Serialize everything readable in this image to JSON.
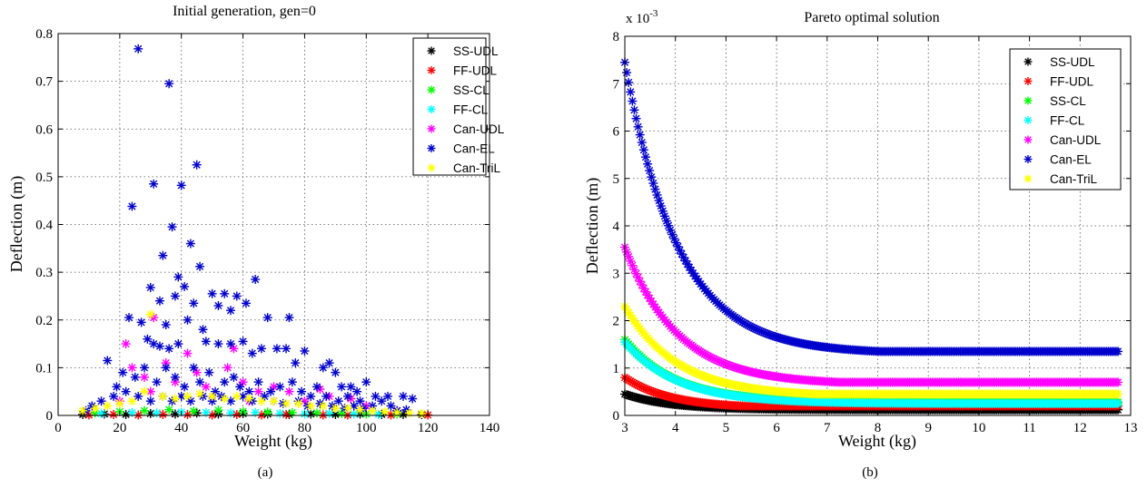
{
  "chart_data": [
    {
      "type": "scatter",
      "title": "Initial generation, gen=0",
      "xlabel": "Weight (kg)",
      "ylabel": "Deflection (m)",
      "caption": "(a)",
      "xlim": [
        0,
        140
      ],
      "ylim": [
        0,
        0.8
      ],
      "xticks": [
        0,
        20,
        40,
        60,
        80,
        100,
        120,
        140
      ],
      "yticks": [
        0,
        0.1,
        0.2,
        0.3,
        0.4,
        0.5,
        0.6,
        0.7,
        0.8
      ],
      "xtick_labels": [
        "0",
        "20",
        "40",
        "60",
        "80",
        "100",
        "120",
        "140"
      ],
      "ytick_labels": [
        "0",
        "0.1",
        "0.2",
        "0.3",
        "0.4",
        "0.5",
        "0.6",
        "0.7",
        "0.8"
      ],
      "grid": true,
      "legend_position": "top-right",
      "marker": "asterisk",
      "series": [
        {
          "name": "SS-UDL",
          "color": "#000000",
          "points": [
            [
              8,
              0.002
            ],
            [
              15,
              0.003
            ],
            [
              22,
              0.002
            ],
            [
              30,
              0.004
            ],
            [
              38,
              0.003
            ],
            [
              45,
              0.005
            ],
            [
              52,
              0.003
            ],
            [
              60,
              0.004
            ],
            [
              68,
              0.003
            ],
            [
              75,
              0.002
            ],
            [
              82,
              0.003
            ],
            [
              90,
              0.002
            ],
            [
              98,
              0.003
            ],
            [
              105,
              0.002
            ],
            [
              112,
              0.002
            ],
            [
              118,
              0.002
            ]
          ]
        },
        {
          "name": "FF-UDL",
          "color": "#ff0000",
          "points": [
            [
              10,
              0.001
            ],
            [
              18,
              0.002
            ],
            [
              26,
              0.001
            ],
            [
              34,
              0.002
            ],
            [
              42,
              0.002
            ],
            [
              50,
              0.001
            ],
            [
              58,
              0.002
            ],
            [
              66,
              0.001
            ],
            [
              74,
              0.002
            ],
            [
              86,
              0.001
            ],
            [
              94,
              0.001
            ],
            [
              108,
              0.001
            ],
            [
              120,
              0.001
            ]
          ]
        },
        {
          "name": "SS-CL",
          "color": "#00ff00",
          "points": [
            [
              12,
              0.005
            ],
            [
              20,
              0.008
            ],
            [
              28,
              0.01
            ],
            [
              36,
              0.012
            ],
            [
              44,
              0.009
            ],
            [
              52,
              0.011
            ],
            [
              60,
              0.008
            ],
            [
              68,
              0.007
            ],
            [
              76,
              0.006
            ],
            [
              84,
              0.005
            ],
            [
              92,
              0.004
            ],
            [
              100,
              0.003
            ],
            [
              110,
              0.003
            ]
          ]
        },
        {
          "name": "FF-CL",
          "color": "#00ffff",
          "points": [
            [
              14,
              0.004
            ],
            [
              24,
              0.006
            ],
            [
              32,
              0.005
            ],
            [
              40,
              0.007
            ],
            [
              48,
              0.006
            ],
            [
              56,
              0.005
            ],
            [
              64,
              0.006
            ],
            [
              72,
              0.004
            ],
            [
              80,
              0.003
            ],
            [
              88,
              0.004
            ],
            [
              96,
              0.003
            ],
            [
              104,
              0.002
            ]
          ]
        },
        {
          "name": "Can-UDL",
          "color": "#ff00ff",
          "points": [
            [
              22,
              0.15
            ],
            [
              24,
              0.1
            ],
            [
              28,
              0.08
            ],
            [
              31,
              0.205
            ],
            [
              35,
              0.11
            ],
            [
              42,
              0.13
            ],
            [
              45,
              0.09
            ],
            [
              48,
              0.06
            ],
            [
              55,
              0.1
            ],
            [
              57,
              0.14
            ],
            [
              60,
              0.07
            ],
            [
              65,
              0.05
            ],
            [
              70,
              0.06
            ],
            [
              75,
              0.05
            ],
            [
              85,
              0.055
            ],
            [
              88,
              0.04
            ],
            [
              95,
              0.035
            ],
            [
              100,
              0.02
            ],
            [
              30,
              0.05
            ],
            [
              50,
              0.04
            ],
            [
              38,
              0.07
            ],
            [
              62,
              0.03
            ],
            [
              80,
              0.03
            ],
            [
              20,
              0.03
            ],
            [
              110,
              0.01
            ]
          ]
        },
        {
          "name": "Can-EL",
          "color": "#0000cc",
          "points": [
            [
              26,
              0.768
            ],
            [
              36,
              0.695
            ],
            [
              45,
              0.525
            ],
            [
              31,
              0.485
            ],
            [
              40,
              0.482
            ],
            [
              24,
              0.438
            ],
            [
              37,
              0.395
            ],
            [
              43,
              0.36
            ],
            [
              34,
              0.335
            ],
            [
              39,
              0.29
            ],
            [
              46,
              0.312
            ],
            [
              30,
              0.268
            ],
            [
              41,
              0.27
            ],
            [
              44,
              0.235
            ],
            [
              38,
              0.25
            ],
            [
              33,
              0.24
            ],
            [
              50,
              0.255
            ],
            [
              54,
              0.255
            ],
            [
              58,
              0.25
            ],
            [
              52,
              0.23
            ],
            [
              56,
              0.22
            ],
            [
              61,
              0.235
            ],
            [
              64,
              0.285
            ],
            [
              68,
              0.205
            ],
            [
              75,
              0.205
            ],
            [
              80,
              0.135
            ],
            [
              23,
              0.205
            ],
            [
              27,
              0.195
            ],
            [
              35,
              0.19
            ],
            [
              42,
              0.2
            ],
            [
              47,
              0.18
            ],
            [
              29,
              0.16
            ],
            [
              31,
              0.15
            ],
            [
              33,
              0.145
            ],
            [
              36,
              0.14
            ],
            [
              39,
              0.15
            ],
            [
              48,
              0.155
            ],
            [
              52,
              0.15
            ],
            [
              56,
              0.15
            ],
            [
              60,
              0.155
            ],
            [
              63,
              0.13
            ],
            [
              66,
              0.14
            ],
            [
              71,
              0.14
            ],
            [
              74,
              0.14
            ],
            [
              77,
              0.11
            ],
            [
              86,
              0.1
            ],
            [
              88,
              0.11
            ],
            [
              90,
              0.09
            ],
            [
              92,
              0.06
            ],
            [
              95,
              0.06
            ],
            [
              97,
              0.05
            ],
            [
              100,
              0.07
            ],
            [
              103,
              0.04
            ],
            [
              107,
              0.04
            ],
            [
              112,
              0.04
            ],
            [
              115,
              0.035
            ],
            [
              16,
              0.115
            ],
            [
              19,
              0.06
            ],
            [
              21,
              0.09
            ],
            [
              25,
              0.08
            ],
            [
              28,
              0.1
            ],
            [
              32,
              0.07
            ],
            [
              35,
              0.1
            ],
            [
              38,
              0.08
            ],
            [
              41,
              0.06
            ],
            [
              44,
              0.1
            ],
            [
              46,
              0.07
            ],
            [
              49,
              0.09
            ],
            [
              51,
              0.05
            ],
            [
              54,
              0.07
            ],
            [
              57,
              0.08
            ],
            [
              59,
              0.06
            ],
            [
              62,
              0.05
            ],
            [
              65,
              0.07
            ],
            [
              67,
              0.04
            ],
            [
              69,
              0.05
            ],
            [
              72,
              0.06
            ],
            [
              76,
              0.07
            ],
            [
              79,
              0.05
            ],
            [
              82,
              0.04
            ],
            [
              84,
              0.06
            ],
            [
              87,
              0.04
            ],
            [
              91,
              0.03
            ],
            [
              94,
              0.04
            ],
            [
              98,
              0.03
            ],
            [
              102,
              0.02
            ],
            [
              105,
              0.03
            ],
            [
              108,
              0.02
            ],
            [
              14,
              0.03
            ],
            [
              11,
              0.02
            ],
            [
              9,
              0.01
            ],
            [
              18,
              0.04
            ],
            [
              22,
              0.05
            ],
            [
              26,
              0.04
            ],
            [
              30,
              0.03
            ],
            [
              34,
              0.04
            ],
            [
              37,
              0.03
            ],
            [
              40,
              0.04
            ],
            [
              43,
              0.03
            ],
            [
              47,
              0.04
            ],
            [
              50,
              0.03
            ],
            [
              53,
              0.04
            ],
            [
              56,
              0.03
            ],
            [
              60,
              0.04
            ],
            [
              63,
              0.03
            ],
            [
              70,
              0.03
            ],
            [
              73,
              0.025
            ],
            [
              78,
              0.03
            ],
            [
              81,
              0.02
            ],
            [
              85,
              0.025
            ],
            [
              89,
              0.02
            ],
            [
              93,
              0.015
            ],
            [
              96,
              0.02
            ],
            [
              99,
              0.015
            ],
            [
              110,
              0.01
            ],
            [
              113,
              0.012
            ]
          ]
        },
        {
          "name": "Can-TriL",
          "color": "#ffff00",
          "points": [
            [
              8,
              0.01
            ],
            [
              12,
              0.015
            ],
            [
              16,
              0.02
            ],
            [
              20,
              0.025
            ],
            [
              24,
              0.03
            ],
            [
              28,
              0.05
            ],
            [
              30,
              0.212
            ],
            [
              34,
              0.04
            ],
            [
              38,
              0.035
            ],
            [
              42,
              0.04
            ],
            [
              46,
              0.045
            ],
            [
              50,
              0.04
            ],
            [
              54,
              0.035
            ],
            [
              58,
              0.04
            ],
            [
              62,
              0.035
            ],
            [
              66,
              0.03
            ],
            [
              70,
              0.03
            ],
            [
              74,
              0.025
            ],
            [
              78,
              0.025
            ],
            [
              82,
              0.02
            ],
            [
              86,
              0.02
            ],
            [
              90,
              0.015
            ],
            [
              94,
              0.015
            ],
            [
              98,
              0.012
            ],
            [
              102,
              0.01
            ],
            [
              106,
              0.008
            ],
            [
              110,
              0.006
            ],
            [
              114,
              0.005
            ],
            [
              118,
              0.004
            ]
          ]
        }
      ]
    },
    {
      "type": "scatter",
      "title": "Pareto optimal solution",
      "xlabel": "Weight (kg)",
      "ylabel": "Deflection (m)",
      "caption": "(b)",
      "y_exponent": "x 10",
      "y_exponent_power": "-3",
      "xlim": [
        3,
        13
      ],
      "ylim": [
        0,
        8
      ],
      "xticks": [
        3,
        4,
        5,
        6,
        7,
        8,
        9,
        10,
        11,
        12,
        13
      ],
      "yticks": [
        0,
        1,
        2,
        3,
        4,
        5,
        6,
        7,
        8
      ],
      "xtick_labels": [
        "3",
        "4",
        "5",
        "6",
        "7",
        "8",
        "9",
        "10",
        "11",
        "12",
        "13"
      ],
      "ytick_labels": [
        "0",
        "1",
        "2",
        "3",
        "4",
        "5",
        "6",
        "7",
        "8"
      ],
      "grid": true,
      "legend_position": "top-right",
      "marker": "asterisk",
      "series": [
        {
          "name": "SS-UDL",
          "color": "#000000",
          "curve": {
            "x_start": 3.0,
            "x_end": 12.75,
            "y_start": 0.45,
            "y_min": 0.12,
            "tau": 0.9
          }
        },
        {
          "name": "FF-UDL",
          "color": "#ff0000",
          "curve": {
            "x_start": 3.0,
            "x_end": 12.75,
            "y_start": 0.8,
            "y_min": 0.15,
            "tau": 0.9,
            "floor": 0.2
          }
        },
        {
          "name": "SS-CL",
          "color": "#00ff00",
          "curve": {
            "x_start": 3.0,
            "x_end": 12.75,
            "y_start": 1.6,
            "y_min": 0.28,
            "tau": 1.0
          }
        },
        {
          "name": "FF-CL",
          "color": "#00ffff",
          "curve": {
            "x_start": 3.0,
            "x_end": 12.75,
            "y_start": 1.55,
            "y_min": 0.25,
            "tau": 1.05
          }
        },
        {
          "name": "Can-UDL",
          "color": "#ff00ff",
          "curve": {
            "x_start": 3.0,
            "x_end": 12.75,
            "y_start": 3.55,
            "y_min": 0.65,
            "tau": 1.05,
            "floor": 0.7
          }
        },
        {
          "name": "Can-EL",
          "color": "#0000cc",
          "curve": {
            "x_start": 3.0,
            "x_end": 12.75,
            "y_start": 7.45,
            "y_min": 1.3,
            "tau": 1.05,
            "floor": 1.35
          }
        },
        {
          "name": "Can-TriL",
          "color": "#ffff00",
          "curve": {
            "x_start": 3.0,
            "x_end": 12.75,
            "y_start": 2.3,
            "y_min": 0.4,
            "tau": 1.05,
            "floor": 0.45
          }
        }
      ]
    }
  ]
}
